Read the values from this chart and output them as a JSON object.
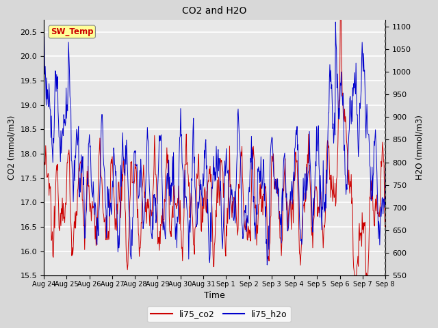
{
  "title": "CO2 and H2O",
  "xlabel": "Time",
  "ylabel_left": "CO2 (mmol/m3)",
  "ylabel_right": "H2O (mmol/m3)",
  "ylim_left": [
    15.5,
    20.75
  ],
  "ylim_right": [
    550,
    1115
  ],
  "yticks_left": [
    15.5,
    16.0,
    16.5,
    17.0,
    17.5,
    18.0,
    18.5,
    19.0,
    19.5,
    20.0,
    20.5
  ],
  "yticks_right": [
    550,
    600,
    650,
    700,
    750,
    800,
    850,
    900,
    950,
    1000,
    1050,
    1100
  ],
  "xtick_labels": [
    "Aug 24",
    "Aug 25",
    "Aug 26",
    "Aug 27",
    "Aug 28",
    "Aug 29",
    "Aug 30",
    "Aug 31",
    "Sep 1",
    "Sep 2",
    "Sep 3",
    "Sep 4",
    "Sep 5",
    "Sep 6",
    "Sep 7",
    "Sep 8"
  ],
  "color_co2": "#cc0000",
  "color_h2o": "#0000cc",
  "legend_label_co2": "li75_co2",
  "legend_label_h2o": "li75_h2o",
  "sw_temp_label": "SW_Temp",
  "sw_temp_box_color": "#ffff99",
  "sw_temp_text_color": "#cc0000",
  "background_color": "#d8d8d8",
  "plot_bg_color": "#e8e8e8",
  "grid_color": "#ffffff",
  "n_points": 720
}
